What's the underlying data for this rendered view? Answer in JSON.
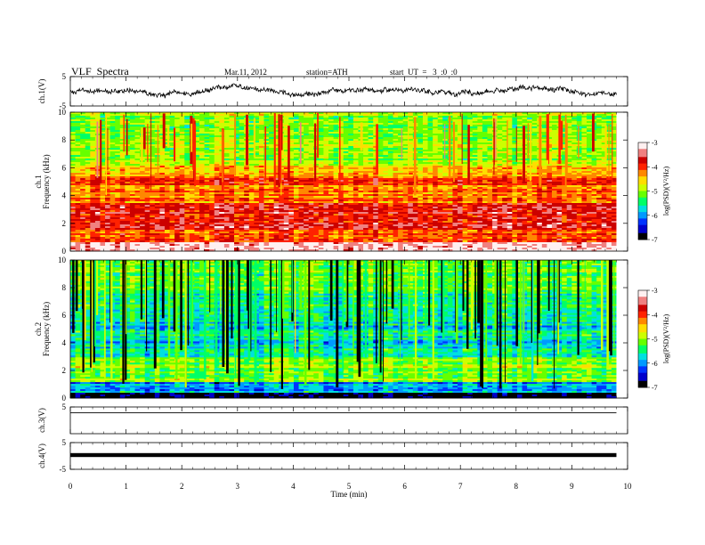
{
  "header": {
    "title": "VLF  Spectra",
    "date": "Mar.11, 2012",
    "station": "station=ATH",
    "start": "start  UT  =   3  :0  :0"
  },
  "colorbar": {
    "label": "log(PSD)(V²/Hz)",
    "ticks": [
      "-3",
      "-4",
      "-5",
      "-6",
      "-7"
    ],
    "colors": [
      "#000000",
      "#0000cc",
      "#0033ff",
      "#0099ff",
      "#00e0e0",
      "#00ff66",
      "#66ff00",
      "#ccff00",
      "#ffdd00",
      "#ff8800",
      "#ff2200",
      "#cc0000",
      "#f08080",
      "#fff0f0"
    ]
  },
  "chart_data": [
    {
      "type": "line",
      "name": "ch1-waveform",
      "ylabel": "ch.1(V)",
      "yticks": [
        "5",
        "-5"
      ],
      "ylim": [
        -5,
        5
      ]
    },
    {
      "type": "heatmap",
      "name": "ch1-spectrogram",
      "ylabel": "ch.1\nFrequency  (kHz)",
      "ylim": [
        0,
        10
      ],
      "yticks": [
        "0",
        "2",
        "4",
        "6",
        "8",
        "10"
      ],
      "xlim": [
        0,
        10
      ],
      "data_end_min": 9.8,
      "zlim": [
        -7,
        -3
      ]
    },
    {
      "type": "heatmap",
      "name": "ch2-spectrogram",
      "ylabel": "ch.2\nFrequency  (kHz)",
      "ylim": [
        0,
        10
      ],
      "yticks": [
        "0",
        "2",
        "4",
        "6",
        "8",
        "10"
      ],
      "xlim": [
        0,
        10
      ],
      "data_end_min": 9.8,
      "zlim": [
        -7,
        -3
      ]
    },
    {
      "type": "line",
      "name": "ch3-waveform",
      "ylabel": "ch.3(V)",
      "yticks": [
        "5"
      ],
      "ylim": [
        -5,
        5
      ]
    },
    {
      "type": "line",
      "name": "ch4-waveform",
      "ylabel": "ch.4(V)",
      "yticks": [
        "5",
        "-5"
      ],
      "ylim": [
        -5,
        5
      ]
    }
  ],
  "xaxis": {
    "label": "Time  (min)",
    "ticks": [
      "0",
      "1",
      "2",
      "3",
      "4",
      "5",
      "6",
      "7",
      "8",
      "9",
      "10"
    ]
  }
}
